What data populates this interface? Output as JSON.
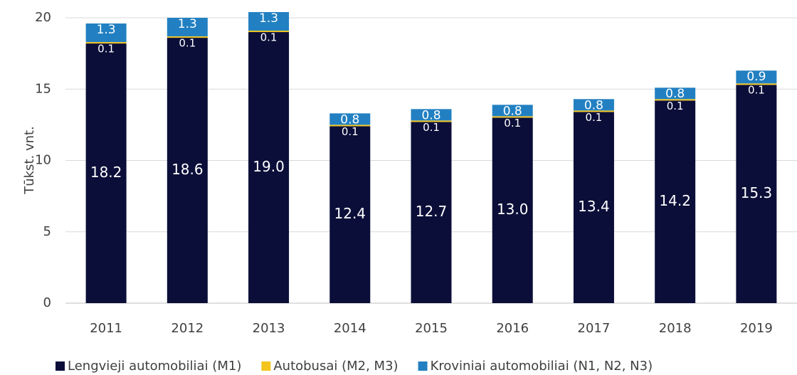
{
  "chart_data": {
    "type": "stacked_bar",
    "y_label": "Tūkst. vnt.",
    "categories": [
      "2011",
      "2012",
      "2013",
      "2014",
      "2015",
      "2016",
      "2017",
      "2018",
      "2019"
    ],
    "series": [
      {
        "name": "Lengvieji automobiliai (M1)",
        "color": "#0b0e38",
        "values": [
          18.2,
          18.6,
          19.0,
          12.4,
          12.7,
          13.0,
          13.4,
          14.2,
          15.3
        ],
        "value_labels": [
          "18.2",
          "18.6",
          "19.0",
          "12.4",
          "12.7",
          "13.0",
          "13.4",
          "14.2",
          "15.3"
        ]
      },
      {
        "name": "Autobusai (M2, M3)",
        "color": "#f2c41c",
        "values": [
          0.1,
          0.1,
          0.1,
          0.1,
          0.1,
          0.1,
          0.1,
          0.1,
          0.1
        ],
        "value_labels": [
          "0.1",
          "0.1",
          "0.1",
          "0.1",
          "0.1",
          "0.1",
          "0.1",
          "0.1",
          "0.1"
        ]
      },
      {
        "name": "Kroviniai automobiliai (N1, N2, N3)",
        "color": "#2280c2",
        "values": [
          1.3,
          1.3,
          1.3,
          0.8,
          0.8,
          0.8,
          0.8,
          0.8,
          0.9
        ],
        "value_labels": [
          "1.3",
          "1.3",
          "1.3",
          "0.8",
          "0.8",
          "0.8",
          "0.8",
          "0.8",
          "0.9"
        ]
      }
    ],
    "ylim": [
      0,
      20
    ],
    "yticks": [
      0,
      5,
      10,
      15,
      20
    ],
    "grid": true,
    "legend": "bottom"
  }
}
